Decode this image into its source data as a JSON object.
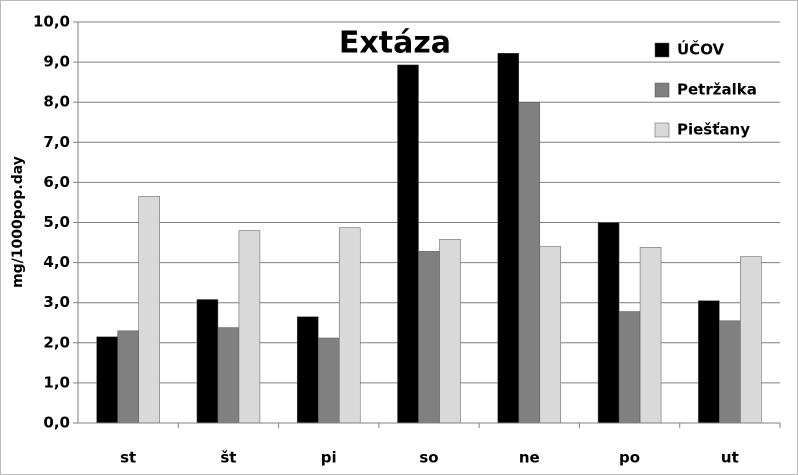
{
  "chart_data": {
    "type": "bar",
    "title": "Extáza",
    "y_label": "mg/1000pop.day",
    "categories": [
      "st",
      "št",
      "pi",
      "so",
      "ne",
      "po",
      "ut"
    ],
    "series": [
      {
        "name": "ÚČOV",
        "color": "#000000",
        "values": [
          2.15,
          3.08,
          2.65,
          8.93,
          9.22,
          5.0,
          3.05
        ]
      },
      {
        "name": "Petržalka",
        "color": "#808080",
        "values": [
          2.3,
          2.38,
          2.12,
          4.28,
          8.0,
          2.78,
          2.55
        ]
      },
      {
        "name": "Piešťany",
        "color": "#d9d9d9",
        "values": [
          5.65,
          4.8,
          4.87,
          4.58,
          4.4,
          4.38,
          4.15
        ]
      }
    ],
    "ylim": [
      0,
      10
    ],
    "yticks": [
      {
        "value": 0,
        "label": "0,0"
      },
      {
        "value": 1,
        "label": "1,0"
      },
      {
        "value": 2,
        "label": "2,0"
      },
      {
        "value": 3,
        "label": "3,0"
      },
      {
        "value": 4,
        "label": "4,0"
      },
      {
        "value": 5,
        "label": "5,0"
      },
      {
        "value": 6,
        "label": "6,0"
      },
      {
        "value": 7,
        "label": "7,0"
      },
      {
        "value": 8,
        "label": "8,0"
      },
      {
        "value": 9,
        "label": "9,0"
      },
      {
        "value": 10,
        "label": "10,0"
      }
    ],
    "grid": true,
    "legend": "upper right"
  }
}
